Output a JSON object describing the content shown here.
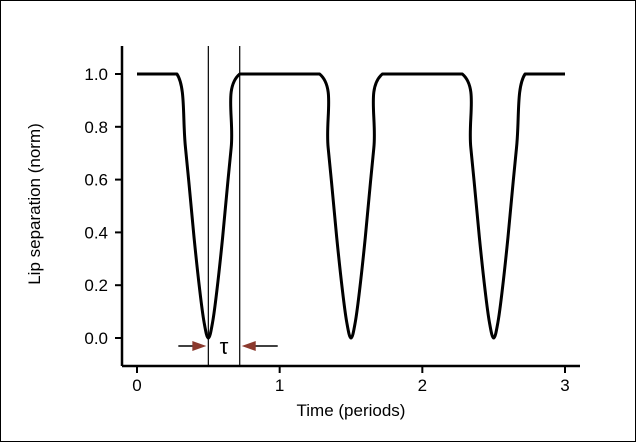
{
  "chart_data": {
    "type": "line",
    "xlabel": "Time (periods)",
    "ylabel": "Lip separation (norm)",
    "xlim": [
      -0.1,
      3.1
    ],
    "ylim": [
      -0.1,
      1.1
    ],
    "xticks": [
      0,
      1,
      2,
      3
    ],
    "yticks": [
      0.0,
      0.2,
      0.4,
      0.6,
      0.8,
      1.0
    ],
    "xtick_labels": [
      "0",
      "1",
      "2",
      "3"
    ],
    "ytick_labels": [
      "0.0",
      "0.2",
      "0.4",
      "0.6",
      "0.8",
      "1.0"
    ],
    "grid": false,
    "series": [
      {
        "line_color": "#000000",
        "x": [
          0.0,
          0.28,
          0.34,
          0.4,
          0.44,
          0.47,
          0.5,
          0.53,
          0.56,
          0.6,
          0.66,
          0.72,
          1.28,
          1.34,
          1.4,
          1.44,
          1.47,
          1.5,
          1.53,
          1.56,
          1.6,
          1.66,
          1.72,
          2.28,
          2.34,
          2.4,
          2.44,
          2.47,
          2.5,
          2.53,
          2.56,
          2.6,
          2.66,
          2.72,
          3.0
        ],
        "y": [
          1.0,
          1.0,
          0.72,
          0.38,
          0.18,
          0.06,
          0.0,
          0.06,
          0.18,
          0.38,
          0.72,
          1.0,
          1.0,
          0.72,
          0.38,
          0.18,
          0.06,
          0.0,
          0.06,
          0.18,
          0.38,
          0.72,
          1.0,
          1.0,
          0.72,
          0.38,
          0.18,
          0.06,
          0.0,
          0.06,
          0.18,
          0.38,
          0.72,
          1.0,
          1.0
        ]
      }
    ],
    "annotations": {
      "tau_label": "τ",
      "tau_lines_x": [
        0.5,
        0.72
      ],
      "arrow_color": "#8b3a2e"
    }
  }
}
